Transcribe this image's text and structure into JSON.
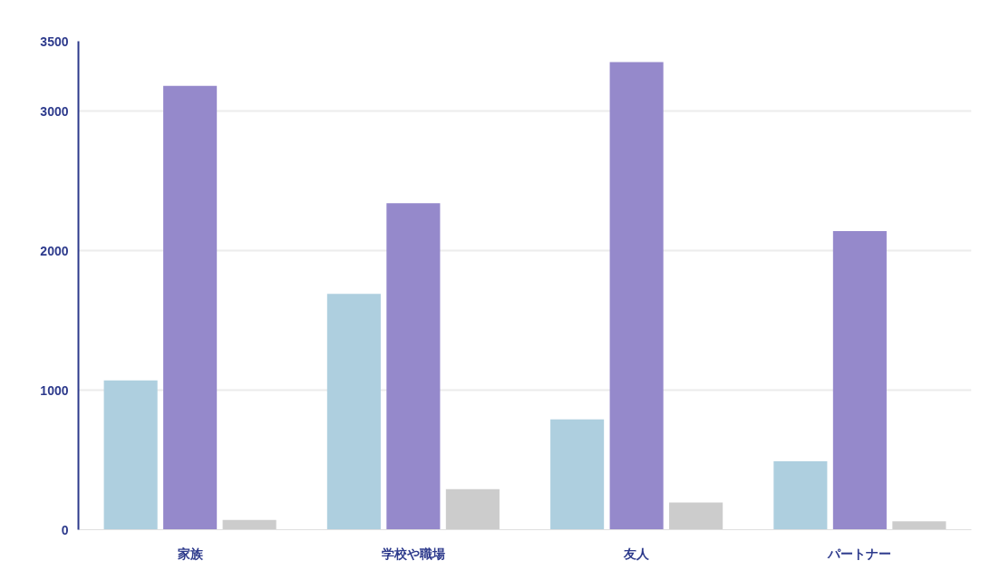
{
  "chart_data": {
    "type": "bar",
    "categories": [
      "家族",
      "学校や職場",
      "友人",
      "パートナー"
    ],
    "series": [
      {
        "color": "#aecfdf",
        "values": [
          1070,
          1690,
          790,
          490
        ]
      },
      {
        "color": "#9589cb",
        "values": [
          3180,
          2340,
          3350,
          2140
        ]
      },
      {
        "color": "#cccccc",
        "values": [
          70,
          290,
          195,
          60
        ]
      }
    ],
    "ylim": [
      0,
      3500
    ],
    "yticks": [
      0,
      1000,
      2000,
      3000,
      3500
    ],
    "grid": "y"
  }
}
